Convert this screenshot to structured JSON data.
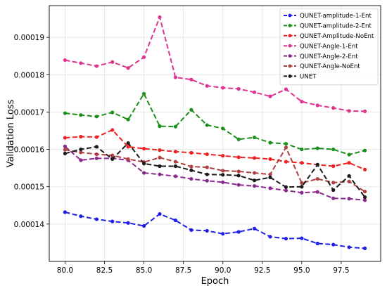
{
  "chart_data": {
    "type": "line",
    "xlabel": "Epoch",
    "ylabel": "Validation Loss",
    "xlim": [
      79.0,
      100.0
    ],
    "ylim": [
      0.00013,
      0.0001985
    ],
    "xticks": [
      80.0,
      82.5,
      85.0,
      87.5,
      90.0,
      92.5,
      95.0,
      97.5
    ],
    "xtick_labels": [
      "80.0",
      "82.5",
      "85.0",
      "87.5",
      "90.0",
      "92.5",
      "95.0",
      "97.5"
    ],
    "yticks": [
      0.00014,
      0.00015,
      0.00016,
      0.00017,
      0.00018,
      0.00019
    ],
    "ytick_labels": [
      "0.00014",
      "0.00015",
      "0.00016",
      "0.00017",
      "0.00018",
      "0.00019"
    ],
    "grid": true,
    "legend_position": "top-right",
    "x": [
      80,
      81,
      82,
      83,
      84,
      85,
      86,
      87,
      88,
      89,
      90,
      91,
      92,
      93,
      94,
      95,
      96,
      97,
      98,
      99
    ],
    "series": [
      {
        "name": "QUNET-amplitude-1-Ent",
        "color": "#1f1fe6",
        "values": [
          0.0001432,
          0.0001421,
          0.0001413,
          0.0001407,
          0.0001403,
          0.0001395,
          0.0001427,
          0.000141,
          0.0001384,
          0.0001382,
          0.0001374,
          0.0001379,
          0.0001388,
          0.0001366,
          0.0001361,
          0.0001362,
          0.0001348,
          0.0001345,
          0.0001338,
          0.0001335
        ]
      },
      {
        "name": "QUNET-amplitude-2-Ent",
        "color": "#1a8f1a",
        "values": [
          0.0001697,
          0.0001692,
          0.0001688,
          0.0001699,
          0.000168,
          0.0001749,
          0.0001662,
          0.0001661,
          0.0001706,
          0.0001665,
          0.0001656,
          0.0001627,
          0.0001632,
          0.0001618,
          0.0001615,
          0.00016,
          0.0001603,
          0.00016,
          0.0001586,
          0.0001597
        ]
      },
      {
        "name": "QUNET-Amplitude-NoEnt",
        "color": "#ee2222",
        "values": [
          0.0001631,
          0.0001634,
          0.0001633,
          0.0001652,
          0.0001607,
          0.0001602,
          0.0001598,
          0.0001594,
          0.0001591,
          0.0001587,
          0.0001583,
          0.0001579,
          0.0001577,
          0.0001574,
          0.0001567,
          0.0001564,
          0.0001559,
          0.0001555,
          0.0001564,
          0.0001546
        ]
      },
      {
        "name": "QUNET-Angle-1-Ent",
        "color": "#e0338f",
        "values": [
          0.0001839,
          0.0001831,
          0.0001823,
          0.0001834,
          0.0001818,
          0.0001847,
          0.0001954,
          0.0001793,
          0.0001787,
          0.000177,
          0.0001765,
          0.0001762,
          0.0001753,
          0.0001742,
          0.0001761,
          0.0001728,
          0.0001718,
          0.0001711,
          0.0001703,
          0.0001702
        ]
      },
      {
        "name": "QUNET-Angle-2-Ent",
        "color": "#8b2a8e",
        "values": [
          0.0001608,
          0.0001571,
          0.0001576,
          0.0001576,
          0.0001571,
          0.0001537,
          0.0001533,
          0.0001528,
          0.0001521,
          0.0001516,
          0.0001512,
          0.0001505,
          0.0001502,
          0.0001496,
          0.000149,
          0.0001484,
          0.0001486,
          0.0001469,
          0.0001468,
          0.0001464
        ]
      },
      {
        "name": "QUNET-Angle-NoEnt",
        "color": "#b03f3f",
        "values": [
          0.0001599,
          0.0001592,
          0.0001587,
          0.0001584,
          0.0001574,
          0.0001566,
          0.0001578,
          0.0001567,
          0.0001554,
          0.0001552,
          0.0001543,
          0.0001541,
          0.0001537,
          0.0001533,
          0.0001605,
          0.000151,
          0.0001521,
          0.0001511,
          0.0001514,
          0.0001487
        ]
      },
      {
        "name": "UNET",
        "color": "#1a1a1a",
        "values": [
          0.0001589,
          0.00016,
          0.0001607,
          0.0001574,
          0.0001617,
          0.0001562,
          0.0001555,
          0.0001555,
          0.0001544,
          0.0001533,
          0.0001532,
          0.000153,
          0.0001517,
          0.0001525,
          0.0001499,
          0.00015,
          0.0001559,
          0.0001491,
          0.0001529,
          0.0001472
        ]
      }
    ]
  }
}
